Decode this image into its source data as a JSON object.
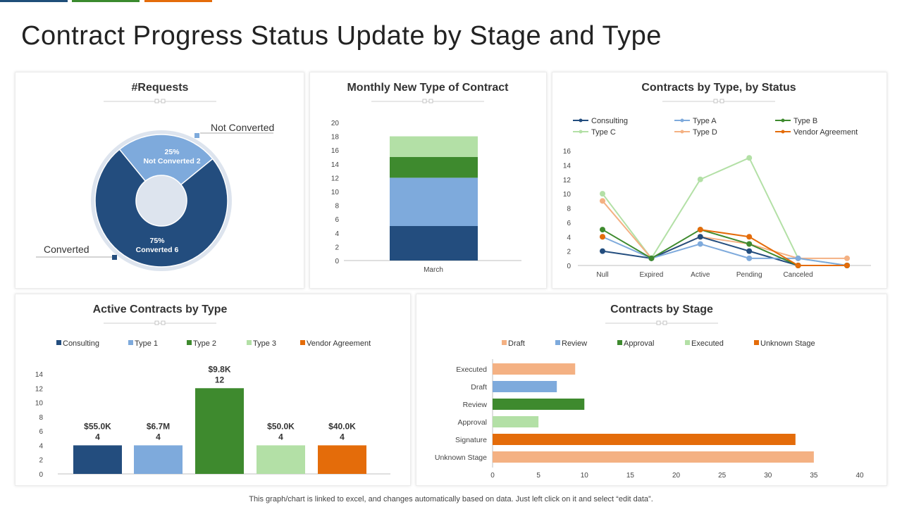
{
  "page": {
    "title": "Contract Progress Status Update by Stage and Type",
    "footer": "This graph/chart is linked to excel, and changes automatically based on data. Just left click on it and select “edit data”."
  },
  "colors": {
    "topbar": [
      "#1f4e79",
      "#3a8a2e",
      "#e46c0a"
    ],
    "Consulting": "#234d7e",
    "Type A": "#7eaadc",
    "Type B": "#3e8a2e",
    "Type C": "#b3e0a6",
    "Type D": "#f4b183",
    "Vendor Agreement": "#e46c0a"
  },
  "chart_data": [
    {
      "id": "requests",
      "type": "pie",
      "title": "#Requests",
      "labels": [
        "Not Converted",
        "Converted"
      ],
      "values": [
        2,
        6
      ],
      "percent_labels": [
        "25%",
        "75%"
      ],
      "inner_labels": [
        "Not Converted 2",
        "Converted 6"
      ],
      "colors": [
        "#7eaadc",
        "#234d7e"
      ]
    },
    {
      "id": "monthly",
      "type": "bar",
      "stacked": true,
      "title": "Monthly New Type of Contract",
      "categories": [
        "March"
      ],
      "ylim": [
        0,
        20
      ],
      "yticks": [
        0,
        2,
        4,
        6,
        8,
        10,
        12,
        14,
        16,
        18,
        20
      ],
      "series": [
        {
          "values": [
            5
          ],
          "color": "#234d7e"
        },
        {
          "values": [
            7
          ],
          "color": "#7eaadc"
        },
        {
          "values": [
            3
          ],
          "color": "#3e8a2e"
        },
        {
          "values": [
            3
          ],
          "color": "#b3e0a6"
        }
      ]
    },
    {
      "id": "status",
      "type": "line",
      "title": "Contracts by Type, by Status",
      "categories": [
        "Null",
        "Expired",
        "Active",
        "Pending",
        "Canceled",
        ""
      ],
      "ylim": [
        0,
        16
      ],
      "yticks": [
        0,
        2,
        4,
        6,
        8,
        10,
        12,
        14,
        16
      ],
      "legend": "top",
      "series": [
        {
          "name": "Consulting",
          "values": [
            2,
            1,
            4,
            2,
            0,
            0
          ],
          "color": "#234d7e"
        },
        {
          "name": "Type A",
          "values": [
            4,
            1,
            3,
            1,
            1,
            0
          ],
          "color": "#7eaadc"
        },
        {
          "name": "Type B",
          "values": [
            5,
            1,
            5,
            3,
            0,
            0
          ],
          "color": "#3e8a2e"
        },
        {
          "name": "Type C",
          "values": [
            10,
            1,
            12,
            15,
            1,
            0
          ],
          "color": "#b3e0a6"
        },
        {
          "name": "Type D",
          "values": [
            9,
            1,
            4,
            3,
            1,
            1
          ],
          "color": "#f4b183"
        },
        {
          "name": "Vendor Agreement",
          "values": [
            4,
            null,
            5,
            4,
            0,
            0
          ],
          "color": "#e46c0a"
        }
      ]
    },
    {
      "id": "active",
      "type": "bar",
      "title": "Active Contracts by Type",
      "categories": [
        "Consulting",
        "Type 1",
        "Type 2",
        "Type 3",
        "Vendor Agreement"
      ],
      "values": [
        4,
        4,
        12,
        4,
        4
      ],
      "amount_labels": [
        "$55.0K",
        "$6.7M",
        "$9.8K",
        "$50.0K",
        "$40.0K"
      ],
      "colors": [
        "#234d7e",
        "#7eaadc",
        "#3e8a2e",
        "#b3e0a6",
        "#e46c0a"
      ],
      "ylim": [
        0,
        14
      ],
      "yticks": [
        0,
        2,
        4,
        6,
        8,
        10,
        12,
        14
      ],
      "legend": "top"
    },
    {
      "id": "stage",
      "type": "bar",
      "orientation": "horizontal",
      "title": "Contracts by Stage",
      "categories": [
        "Executed",
        "Draft",
        "Review",
        "Approval",
        "Signature",
        "Unknown Stage"
      ],
      "values": [
        9,
        7,
        10,
        5,
        33,
        35
      ],
      "colors": [
        "#f4b183",
        "#7eaadc",
        "#3e8a2e",
        "#b3e0a6",
        "#e46c0a",
        "#f4b183"
      ],
      "legend_labels": [
        "Draft",
        "Review",
        "Approval",
        "Executed",
        "Unknown Stage"
      ],
      "legend_colors": [
        "#f4b183",
        "#7eaadc",
        "#3e8a2e",
        "#b3e0a6",
        "#e46c0a"
      ],
      "xlim": [
        0,
        40
      ],
      "xticks": [
        0,
        5,
        10,
        15,
        20,
        25,
        30,
        35,
        40
      ],
      "legend": "top"
    }
  ]
}
